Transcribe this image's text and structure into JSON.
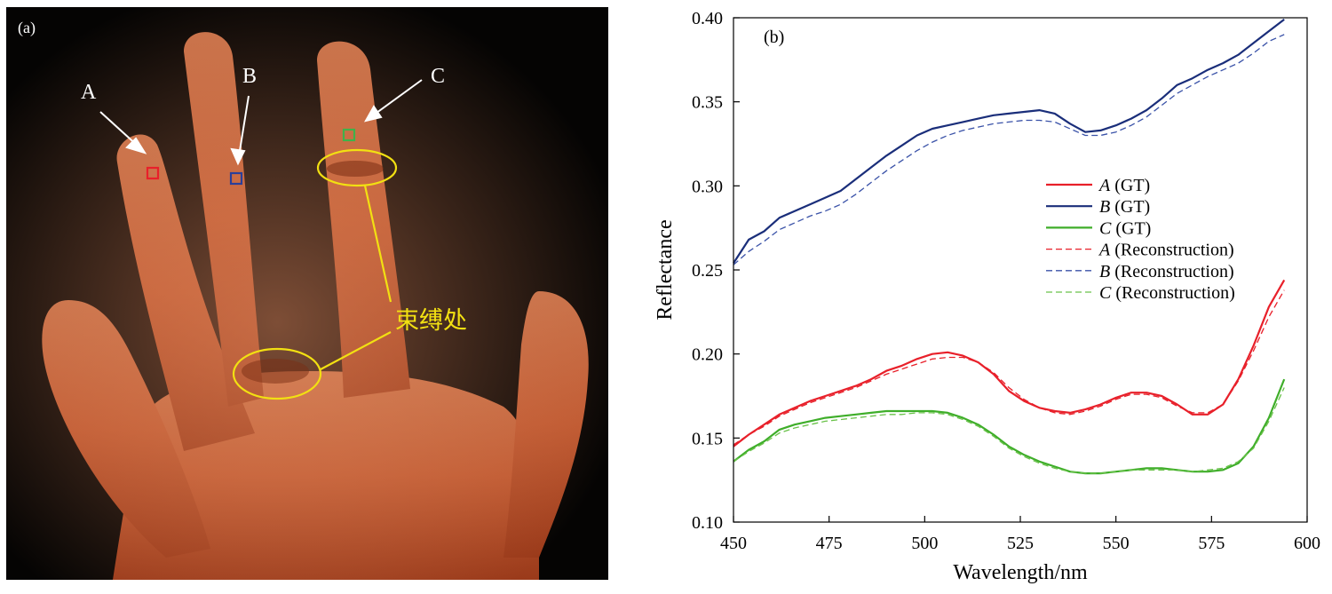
{
  "photo": {
    "panel_label": "(a)",
    "markers": [
      {
        "label": "A",
        "color": "#e8202a"
      },
      {
        "label": "B",
        "color": "#2a3f9a"
      },
      {
        "label": "C",
        "color": "#3fb24a"
      }
    ],
    "annotation_color": "#f2e012",
    "annotation": "束缚处"
  },
  "chart_data": {
    "type": "line",
    "panel_label": "(b)",
    "xlabel": "Wavelength/nm",
    "ylabel": "Reflectance",
    "xlim": [
      450,
      600
    ],
    "ylim": [
      0.1,
      0.4
    ],
    "xticks": [
      "450",
      "475",
      "500",
      "525",
      "550",
      "575",
      "600"
    ],
    "yticks": [
      "0.10",
      "0.15",
      "0.20",
      "0.25",
      "0.30",
      "0.35",
      "0.40"
    ],
    "grid": false,
    "legend_position": "center-right",
    "x": [
      450,
      454,
      458,
      462,
      466,
      470,
      474,
      478,
      482,
      486,
      490,
      494,
      498,
      502,
      506,
      510,
      514,
      518,
      522,
      526,
      530,
      534,
      538,
      542,
      546,
      550,
      554,
      558,
      562,
      566,
      570,
      574,
      578,
      582,
      586,
      590,
      594
    ],
    "series": [
      {
        "letter": "A",
        "suffix": " (GT)",
        "color": "#e8202a",
        "dash": false,
        "values": [
          0.145,
          0.152,
          0.158,
          0.164,
          0.168,
          0.172,
          0.175,
          0.178,
          0.181,
          0.185,
          0.19,
          0.193,
          0.197,
          0.2,
          0.201,
          0.199,
          0.195,
          0.188,
          0.178,
          0.172,
          0.168,
          0.166,
          0.165,
          0.167,
          0.17,
          0.174,
          0.177,
          0.177,
          0.175,
          0.17,
          0.164,
          0.164,
          0.17,
          0.185,
          0.205,
          0.228,
          0.244
        ]
      },
      {
        "letter": "B",
        "suffix": " (GT)",
        "color": "#1a2e7a",
        "dash": false,
        "values": [
          0.254,
          0.268,
          0.273,
          0.281,
          0.285,
          0.289,
          0.293,
          0.297,
          0.304,
          0.311,
          0.318,
          0.324,
          0.33,
          0.334,
          0.336,
          0.338,
          0.34,
          0.342,
          0.343,
          0.344,
          0.345,
          0.343,
          0.337,
          0.332,
          0.333,
          0.336,
          0.34,
          0.345,
          0.352,
          0.36,
          0.364,
          0.369,
          0.373,
          0.378,
          0.385,
          0.392,
          0.399
        ]
      },
      {
        "letter": "C",
        "suffix": " (GT)",
        "color": "#3fae2a",
        "dash": false,
        "values": [
          0.136,
          0.143,
          0.148,
          0.155,
          0.158,
          0.16,
          0.162,
          0.163,
          0.164,
          0.165,
          0.166,
          0.166,
          0.166,
          0.166,
          0.165,
          0.162,
          0.158,
          0.152,
          0.145,
          0.14,
          0.136,
          0.133,
          0.13,
          0.129,
          0.129,
          0.13,
          0.131,
          0.132,
          0.132,
          0.131,
          0.13,
          0.13,
          0.131,
          0.135,
          0.145,
          0.162,
          0.185
        ]
      },
      {
        "letter": "A",
        "suffix": " (Reconstruction)",
        "color": "#e8202a",
        "dash": true,
        "values": [
          0.146,
          0.152,
          0.157,
          0.163,
          0.167,
          0.171,
          0.174,
          0.177,
          0.18,
          0.184,
          0.188,
          0.191,
          0.194,
          0.197,
          0.198,
          0.198,
          0.195,
          0.189,
          0.18,
          0.173,
          0.168,
          0.165,
          0.164,
          0.166,
          0.169,
          0.173,
          0.176,
          0.176,
          0.174,
          0.169,
          0.165,
          0.165,
          0.17,
          0.184,
          0.202,
          0.222,
          0.238
        ]
      },
      {
        "letter": "B",
        "suffix": " (Reconstruction)",
        "color": "#3a52a8",
        "dash": true,
        "values": [
          0.253,
          0.261,
          0.267,
          0.274,
          0.278,
          0.282,
          0.285,
          0.289,
          0.295,
          0.302,
          0.309,
          0.315,
          0.321,
          0.326,
          0.33,
          0.333,
          0.335,
          0.337,
          0.338,
          0.339,
          0.339,
          0.338,
          0.334,
          0.33,
          0.33,
          0.332,
          0.336,
          0.341,
          0.348,
          0.355,
          0.36,
          0.365,
          0.369,
          0.373,
          0.379,
          0.386,
          0.39
        ]
      },
      {
        "letter": "C",
        "suffix": " (Reconstruction)",
        "color": "#6ac24a",
        "dash": true,
        "values": [
          0.136,
          0.142,
          0.147,
          0.153,
          0.156,
          0.158,
          0.16,
          0.161,
          0.162,
          0.163,
          0.164,
          0.164,
          0.165,
          0.165,
          0.164,
          0.161,
          0.157,
          0.151,
          0.144,
          0.139,
          0.135,
          0.132,
          0.13,
          0.129,
          0.129,
          0.13,
          0.131,
          0.131,
          0.131,
          0.131,
          0.13,
          0.131,
          0.132,
          0.136,
          0.144,
          0.16,
          0.18
        ]
      }
    ]
  }
}
